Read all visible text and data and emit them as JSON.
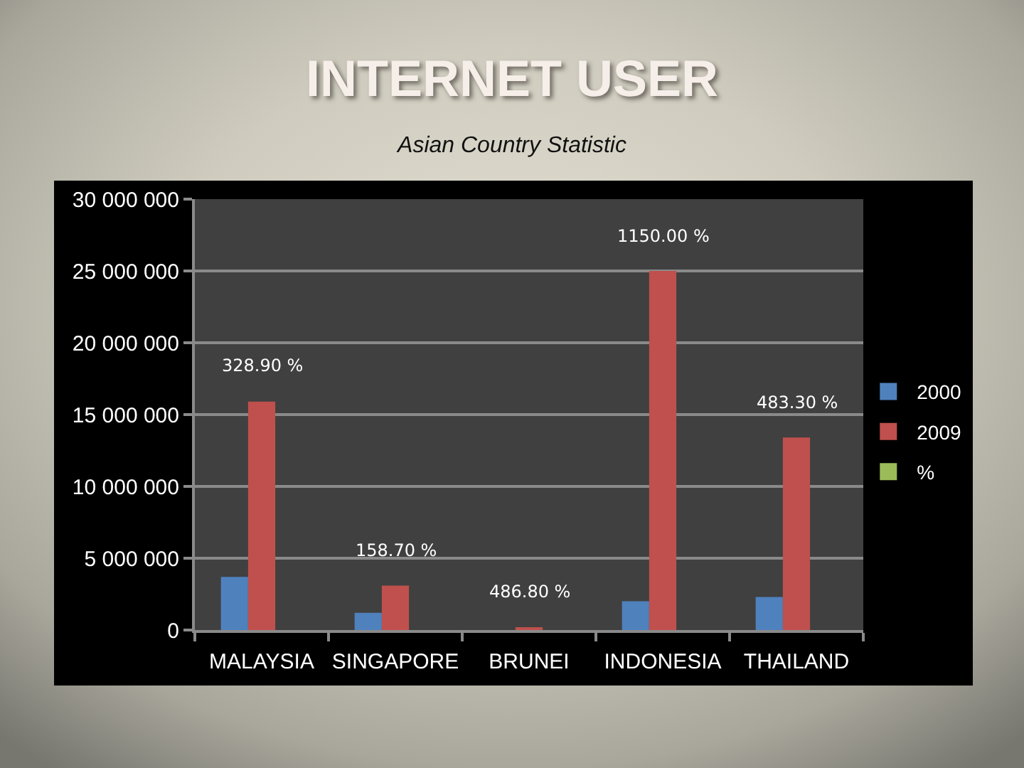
{
  "chart_data": {
    "type": "bar",
    "title": "INTERNET USER",
    "subtitle": "Asian Country Statistic",
    "categories": [
      "MALAYSIA",
      "SINGAPORE",
      "BRUNEI",
      "INDONESIA",
      "THAILAND"
    ],
    "series": [
      {
        "name": "2000",
        "color": "#4f81bd",
        "values": [
          3700000,
          1200000,
          null,
          2000000,
          2300000
        ]
      },
      {
        "name": "2009",
        "color": "#c0504d",
        "values": [
          15900000,
          3100000,
          200000,
          25000000,
          13400000
        ]
      },
      {
        "name": "%",
        "color": "#9bbb59",
        "values": [
          null,
          null,
          null,
          null,
          null
        ]
      }
    ],
    "ylim": [
      0,
      30000000
    ],
    "yticks": [
      0,
      {
        "value": 5000000,
        "label": "5 000 000"
      },
      {
        "value": 10000000,
        "label": "10 000 000"
      },
      {
        "value": 15000000,
        "label": "15 000 000"
      },
      {
        "value": 20000000,
        "label": "20 000 000"
      },
      {
        "value": 25000000,
        "label": "25 000 000"
      },
      {
        "value": 30000000,
        "label": "30 000 000"
      }
    ],
    "annotations": [
      "328.90 %",
      "158.70 %",
      "486.80 %",
      "1150.00 %",
      "483.30 %"
    ],
    "grid": "y",
    "legend": "right"
  }
}
